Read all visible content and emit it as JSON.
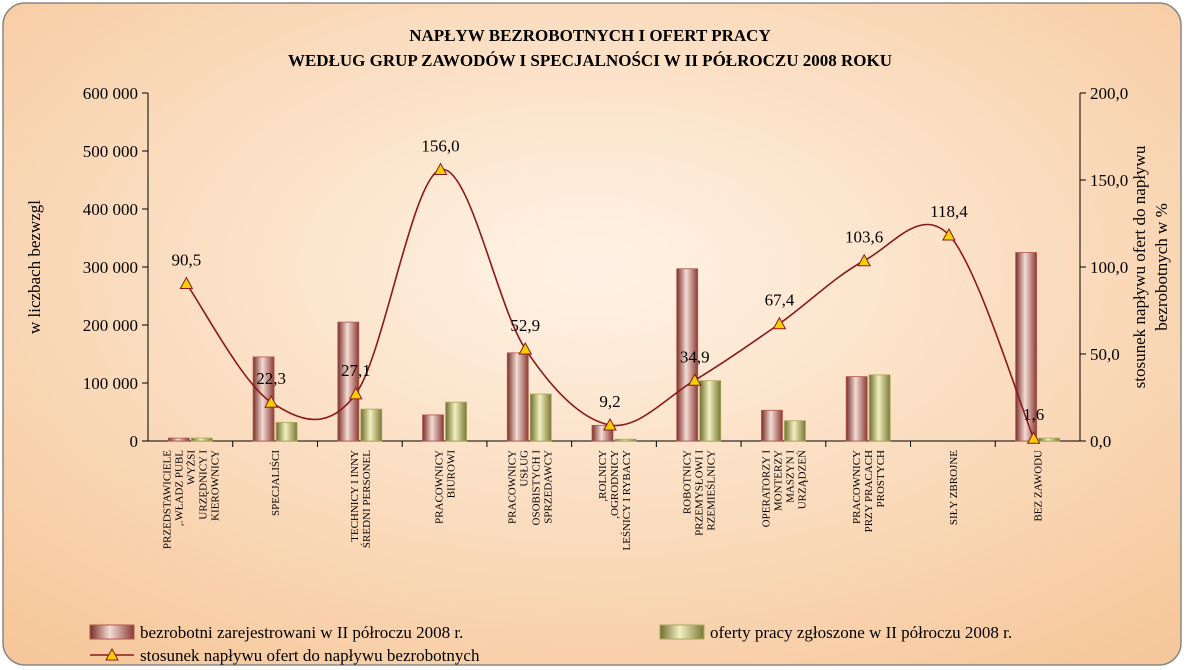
{
  "chart_data": {
    "type": "bar_line",
    "title": "NAPŁYW  BEZROBOTNYCH  I  OFERT PRACY",
    "subtitle": "WEDŁUG  GRUP ZAWODÓW  I  SPECJALNOŚCI  W  II  PÓŁROCZU  2008  ROKU",
    "y_label": "w liczbach bezwzgl",
    "y2_label": "stosunek napływu ofert do napływu\nbezrobotnych  w %",
    "categories": [
      "PRZEDSTAWICIELE\n,.WŁADZ PUBL\nWYŻSI\nURZĘDNICY I\nKIEROWNICY",
      "SPECJALIŚCI",
      "TECHNICY I INNY\nŚREDNI PERSONEL",
      "PRACOWNICY\nBIUROWI",
      "PRACOWNICY\nUSŁUG\nOSOBISTYCH I\nSPRZEDAWCY",
      ",ROLNICY\n,OGRODNICY\nLEŚNICY I RYBACY",
      "ROBOTNICY\nPRZEMYSŁOWI I\nRZEMIEŚLNICY",
      "OPERATORZY I\nMONTERZY\nMASZYN I\nURZĄDZEŃ",
      "PRACOWNICY\nPRZY PRACACH\nPROSTYCH",
      "SIŁY ZBROJNE",
      "BEZ ZAWODU"
    ],
    "series": [
      {
        "name": "bezrobotni  zarejestrowani w II półroczu  2008 r.",
        "color": "#b0584f",
        "values": [
          5000,
          145000,
          205000,
          45000,
          152000,
          27000,
          297000,
          53000,
          111000,
          0,
          325000
        ]
      },
      {
        "name": "oferty  pracy zgłoszone w II półroczu 2008 r.",
        "color": "#a9a85a",
        "values": [
          5000,
          32000,
          55000,
          67000,
          81000,
          3000,
          104000,
          35000,
          114000,
          0,
          5000
        ]
      },
      {
        "name": "stosunek napływu ofert do napływu bezrobotnych",
        "color": "#8b1a1a",
        "marker_color": "#f5d000",
        "axis": "y2",
        "values": [
          90.5,
          22.3,
          27.1,
          156.0,
          52.9,
          9.2,
          34.9,
          67.4,
          103.6,
          118.4,
          1.6
        ],
        "value_labels": [
          "90,5",
          "22,3",
          "27,1",
          "156,0",
          "52,9",
          "9,2",
          "34,9",
          "67,4",
          "103,6",
          "118,4",
          "1,6"
        ]
      }
    ],
    "ylim": [
      0,
      600000
    ],
    "yticks": [
      0,
      {
        "value": 100000,
        "label": "100 000"
      },
      {
        "value": 200000,
        "label": "200 000"
      },
      {
        "value": 300000,
        "label": "300 000"
      },
      {
        "value": 400000,
        "label": "400 000"
      },
      {
        "value": 500000,
        "label": "500 000"
      },
      {
        "value": 600000,
        "label": "600 000"
      }
    ],
    "y2lim": [
      0,
      200
    ],
    "y2ticks": [
      {
        "value": 0,
        "label": "0,0"
      },
      {
        "value": 50,
        "label": "50,0"
      },
      {
        "value": 100,
        "label": "100,0"
      },
      {
        "value": 150,
        "label": "150,0"
      },
      {
        "value": 200,
        "label": "200,0"
      }
    ]
  }
}
